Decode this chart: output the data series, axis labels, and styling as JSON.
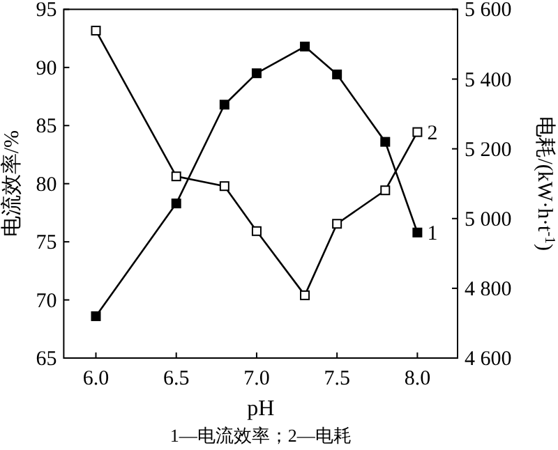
{
  "chart_data": {
    "type": "line",
    "xlabel": "pH",
    "ylabel": "电流效率/%",
    "y2label": "电耗/(kW·h·t$^{-1}$)",
    "x": [
      6.0,
      6.5,
      6.8,
      7.0,
      7.3,
      7.5,
      7.8,
      8.0
    ],
    "series": [
      {
        "name": "1",
        "color": "#000000",
        "values": [
          68.6,
          78.3,
          86.8,
          89.5,
          91.8,
          89.4,
          83.6,
          75.8
        ]
      },
      {
        "name": "2",
        "color": "#000000",
        "axis": "y2",
        "values": [
          5539,
          5121,
          5093,
          4964,
          4780,
          4985,
          5081,
          5248
        ]
      }
    ],
    "xlim": [
      5.8,
      8.25
    ],
    "xticks": [
      {
        "value": 6.0,
        "label": "6.0"
      },
      {
        "value": 6.5,
        "label": "6.5"
      },
      {
        "value": 7.0,
        "label": "7.0"
      },
      {
        "value": 7.5,
        "label": "7.5"
      },
      {
        "value": 8.0,
        "label": "8.0"
      }
    ],
    "ylim": [
      65,
      95
    ],
    "yticks": [
      65,
      70,
      75,
      80,
      85,
      90,
      95
    ],
    "y2lim": [
      4600,
      5600
    ],
    "y2ticks": [
      {
        "value": 4600,
        "label": "4 600"
      },
      {
        "value": 4800,
        "label": "4 800"
      },
      {
        "value": 5000,
        "label": "5 000"
      },
      {
        "value": 5200,
        "label": "5 200"
      },
      {
        "value": 5400,
        "label": "5 400"
      },
      {
        "value": 5600,
        "label": "5 600"
      }
    ],
    "marker": "square",
    "line_style": "solid",
    "grid": false,
    "annotations": [
      "1—电流效率；2—电耗"
    ]
  }
}
